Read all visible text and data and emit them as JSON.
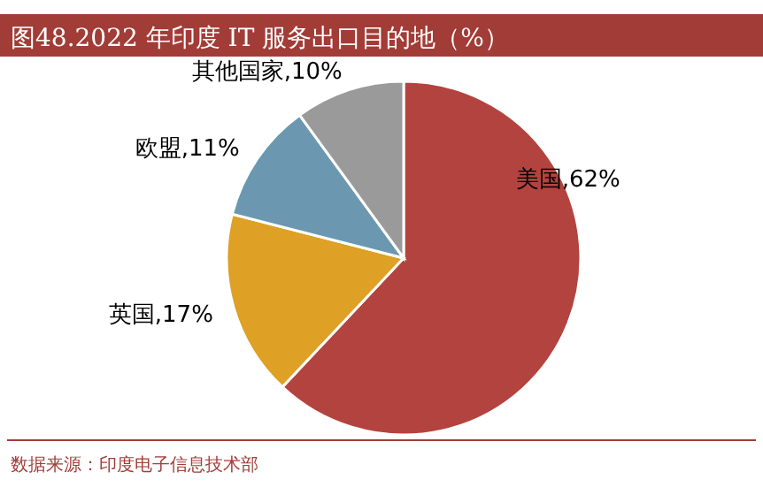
{
  "chart_data": {
    "type": "pie",
    "title": "图48.2022 年印度 IT 服务出口目的地（%）",
    "categories": [
      "美国",
      "英国",
      "欧盟",
      "其他国家"
    ],
    "values": [
      62,
      17,
      11,
      10
    ],
    "colors": [
      "#b3433f",
      "#dea025",
      "#6b98b0",
      "#9a9a9a"
    ],
    "value_labels": [
      "62%",
      "17%",
      "11%",
      "10%"
    ],
    "annotations": [
      "数据来源：印度电子信息技术部"
    ]
  }
}
